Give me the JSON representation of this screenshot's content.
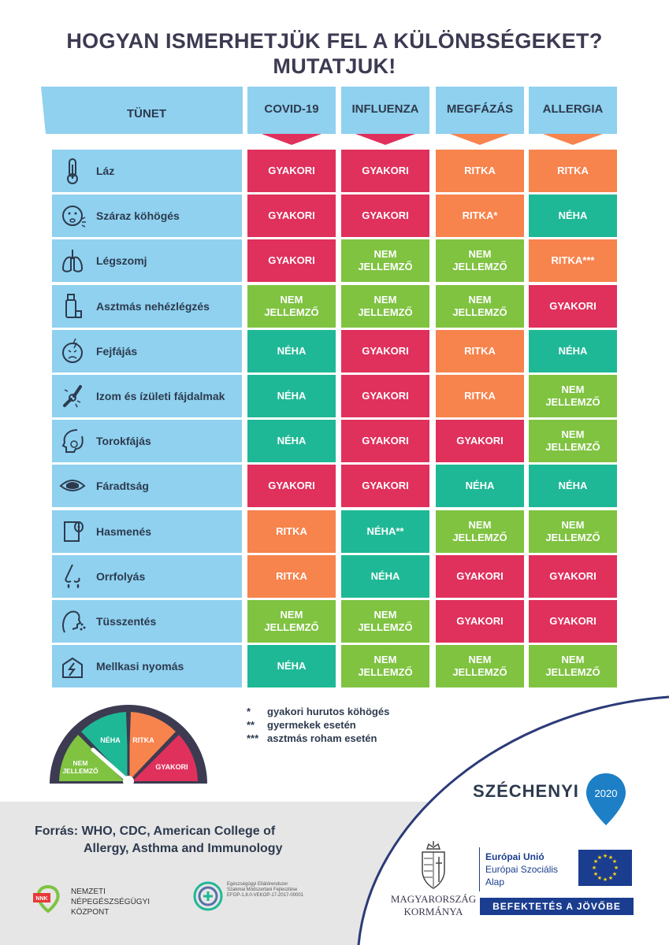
{
  "title": {
    "line1": "HOGYAN ISMERHETJÜK FEL A KÜLÖNBSÉGEKET?",
    "line2": "MUTATJUK!"
  },
  "table": {
    "symptom_header": "TÜNET",
    "columns": [
      "COVID-19",
      "INFLUENZA",
      "MEGFÁZÁS",
      "ALLERGIA"
    ],
    "column_colors": [
      "#e0305c",
      "#e0305c",
      "#f7834d",
      "#f7834d"
    ],
    "rows": [
      {
        "symptom": "Láz",
        "icon": "thermometer-icon",
        "values": [
          "GYAKORI",
          "GYAKORI",
          "RITKA",
          "RITKA"
        ]
      },
      {
        "symptom": "Száraz köhögés",
        "icon": "coughing-face-icon",
        "values": [
          "GYAKORI",
          "GYAKORI",
          "RITKA*",
          "NÉHA"
        ]
      },
      {
        "symptom": "Légszomj",
        "icon": "lungs-icon",
        "values": [
          "GYAKORI",
          "NEM JELLEMZŐ",
          "NEM JELLEMZŐ",
          "RITKA***"
        ]
      },
      {
        "symptom": "Asztmás nehézlégzés",
        "icon": "inhaler-icon",
        "values": [
          "NEM JELLEMZŐ",
          "NEM JELLEMZŐ",
          "NEM JELLEMZŐ",
          "GYAKORI"
        ]
      },
      {
        "symptom": "Fejfájás",
        "icon": "headache-face-icon",
        "values": [
          "NÉHA",
          "GYAKORI",
          "RITKA",
          "NÉHA"
        ]
      },
      {
        "symptom": "Izom és ízületi fájdalmak",
        "icon": "joint-pain-icon",
        "values": [
          "NÉHA",
          "GYAKORI",
          "RITKA",
          "NEM JELLEMZŐ"
        ]
      },
      {
        "symptom": "Torokfájás",
        "icon": "sore-throat-icon",
        "values": [
          "NÉHA",
          "GYAKORI",
          "GYAKORI",
          "NEM JELLEMZŐ"
        ]
      },
      {
        "symptom": "Fáradtság",
        "icon": "tired-eye-icon",
        "values": [
          "GYAKORI",
          "GYAKORI",
          "NÉHA",
          "NÉHA"
        ]
      },
      {
        "symptom": "Hasmenés",
        "icon": "toilet-paper-icon",
        "values": [
          "RITKA",
          "NÉHA**",
          "NEM JELLEMZŐ",
          "NEM JELLEMZŐ"
        ]
      },
      {
        "symptom": "Orrfolyás",
        "icon": "runny-nose-icon",
        "values": [
          "RITKA",
          "NÉHA",
          "GYAKORI",
          "GYAKORI"
        ]
      },
      {
        "symptom": "Tüsszentés",
        "icon": "sneezing-icon",
        "values": [
          "NEM JELLEMZŐ",
          "NEM JELLEMZŐ",
          "GYAKORI",
          "GYAKORI"
        ]
      },
      {
        "symptom": "Mellkasi nyomás",
        "icon": "chest-pressure-icon",
        "values": [
          "NÉHA",
          "NEM JELLEMZŐ",
          "NEM JELLEMZŐ",
          "NEM JELLEMZŐ"
        ]
      }
    ]
  },
  "category_colors": {
    "GYAKORI": "#e0305c",
    "NÉHA": "#1fb896",
    "RITKA": "#f7834d",
    "NEM JELLEMZŐ": "#7fc341"
  },
  "gauge": {
    "labels": {
      "nem_line1": "NEM",
      "nem_line2": "JELLEMZŐ",
      "neha": "NÉHA",
      "ritka": "RITKA",
      "gyakori": "GYAKORI"
    }
  },
  "footnotes": [
    {
      "mark": "*",
      "text": "gyakori hurutos köhögés"
    },
    {
      "mark": "**",
      "text": "gyermekek esetén"
    },
    {
      "mark": "***",
      "text": "asztmás roham esetén"
    }
  ],
  "source": {
    "line1": "Forrás: WHO, CDC, American College of",
    "line2": "Allergy, Asthma and Immunology"
  },
  "logos": {
    "nnk_badge": "NNK",
    "nnk_line1": "NEMZETI",
    "nnk_line2": "NÉPEGÉSZSÉGÜGYI",
    "nnk_line3": "KÖZPONT",
    "efop_line1": "Egészségügyi Ellátórendszer",
    "efop_line2": "Szakmai Módszertani Fejlesztése",
    "efop_line3": "EFOP-1.8.0-VEKOP-17-2017-00001",
    "szechenyi": "SZÉCHENYI",
    "szechenyi_year": "2020",
    "kormany_line1": "MAGYARORSZÁG",
    "kormany_line2": "KORMÁNYA",
    "eu_line1": "Európai Unió",
    "eu_line2": "Európai Szociális",
    "eu_line3": "Alap",
    "eu_banner": "BEFEKTETÉS A JÖVŐBE"
  },
  "colors": {
    "header_blue": "#8fd1ef",
    "title_dark": "#3c3b52",
    "eu_blue": "#1b3d8f",
    "curve_navy": "#2b3b78"
  }
}
